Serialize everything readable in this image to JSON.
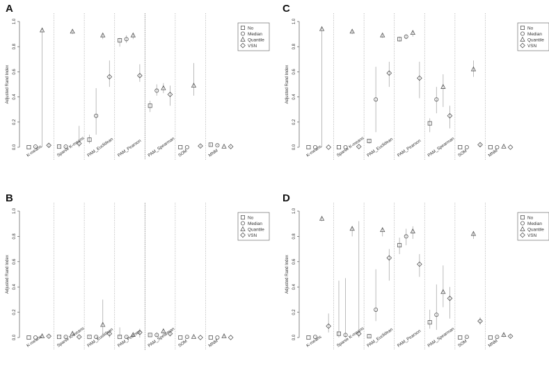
{
  "legend": [
    "No",
    "Median",
    "Quantile",
    "VSN"
  ],
  "marker_symbols": [
    "square",
    "circle",
    "triangle",
    "diamond"
  ],
  "colors": {
    "axis": "#555555",
    "marker": "#555555",
    "errorbar": "#aaaaaa",
    "separator": "#999999",
    "text": "#333333"
  },
  "chart_data": [
    {
      "type": "scatter",
      "panel_label": "A",
      "ylabel": "Adjusted Rand Index",
      "ylim": [
        0,
        1
      ],
      "yticks": [
        "0.0",
        "0.2",
        "0.4",
        "0.6",
        "0.8",
        "1.0"
      ],
      "categories": [
        "K-means",
        "Sparse K-means",
        "PAM_Euclidean",
        "PAM_Pearson",
        "PAM_Spearman",
        "SOM",
        "MNM"
      ],
      "separator_style": [
        "dotted",
        "dotted",
        "dotted",
        "dashed",
        "dotted",
        "dotted"
      ],
      "series": [
        {
          "name": "No",
          "values": [
            0.0,
            0.005,
            0.06,
            0.85,
            0.33,
            0.0,
            0.02
          ],
          "lower": [
            0.0,
            0.0,
            0.03,
            0.8,
            0.28,
            0.0,
            0.01
          ],
          "upper": [
            0.0,
            0.01,
            0.1,
            0.87,
            0.37,
            0.0,
            0.03
          ]
        },
        {
          "name": "Median",
          "values": [
            0.005,
            0.005,
            0.25,
            0.86,
            0.45,
            0.0,
            0.015
          ],
          "lower": [
            0.0,
            0.0,
            0.1,
            0.83,
            0.41,
            0.0,
            0.01
          ],
          "upper": [
            0.01,
            0.01,
            0.47,
            0.89,
            0.5,
            0.0,
            0.02
          ]
        },
        {
          "name": "Quantile",
          "values": [
            0.93,
            0.92,
            0.89,
            0.89,
            0.47,
            0.49,
            0.005
          ],
          "lower": [
            0.0,
            0.9,
            0.86,
            0.86,
            0.43,
            0.41,
            0.0
          ],
          "upper": [
            0.95,
            0.93,
            0.9,
            0.9,
            0.51,
            0.67,
            0.01
          ]
        },
        {
          "name": "VSN",
          "values": [
            0.015,
            0.03,
            0.56,
            0.57,
            0.42,
            0.01,
            0.005
          ],
          "lower": [
            0.0,
            0.0,
            0.48,
            0.52,
            0.33,
            0.0,
            0.0
          ],
          "upper": [
            0.03,
            0.17,
            0.69,
            0.66,
            0.49,
            0.02,
            0.01
          ]
        }
      ]
    },
    {
      "type": "scatter",
      "panel_label": "B",
      "ylabel": "Adjusted Rand Index",
      "ylim": [
        0,
        1
      ],
      "yticks": [
        "0.0",
        "0.2",
        "0.4",
        "0.6",
        "0.8",
        "1.0"
      ],
      "categories": [
        "K-means",
        "Sparse K-means",
        "PAM_Euclidean",
        "PAM_Pearson",
        "PAM_Spearman",
        "SOM",
        "MNM"
      ],
      "separator_style": [
        "dotted",
        "dotted",
        "dotted",
        "dashed",
        "dotted",
        "dotted"
      ],
      "series": [
        {
          "name": "No",
          "values": [
            0.0,
            0.005,
            0.005,
            0.005,
            0.02,
            0.0,
            0.0
          ],
          "lower": [
            0.0,
            0.0,
            0.0,
            0.0,
            0.01,
            0.0,
            0.0
          ],
          "upper": [
            0.0,
            0.01,
            0.01,
            0.08,
            0.03,
            0.0,
            0.0
          ]
        },
        {
          "name": "Median",
          "values": [
            0.0,
            0.005,
            0.005,
            0.005,
            0.02,
            0.005,
            0.0
          ],
          "lower": [
            0.0,
            0.0,
            0.0,
            0.0,
            0.01,
            0.0,
            0.0
          ],
          "upper": [
            0.0,
            0.01,
            0.01,
            0.01,
            0.04,
            0.01,
            0.0
          ]
        },
        {
          "name": "Quantile",
          "values": [
            0.01,
            0.03,
            0.1,
            0.02,
            0.05,
            0.005,
            0.01
          ],
          "lower": [
            0.0,
            0.0,
            0.0,
            0.0,
            0.02,
            0.0,
            0.0
          ],
          "upper": [
            0.02,
            0.04,
            0.3,
            0.03,
            0.07,
            0.01,
            0.02
          ]
        },
        {
          "name": "VSN",
          "values": [
            0.01,
            0.005,
            0.03,
            0.04,
            0.03,
            0.0,
            0.0
          ],
          "lower": [
            0.0,
            0.0,
            0.0,
            0.0,
            0.02,
            0.0,
            0.0
          ],
          "upper": [
            0.02,
            0.01,
            0.05,
            0.07,
            0.05,
            0.0,
            0.0
          ]
        }
      ]
    },
    {
      "type": "scatter",
      "panel_label": "C",
      "ylabel": "Adjusted Rand Index",
      "ylim": [
        0,
        1
      ],
      "yticks": [
        "0.0",
        "0.2",
        "0.4",
        "0.6",
        "0.8",
        "1.0"
      ],
      "categories": [
        "K-means",
        "Sparse K-means",
        "PAM_Euclidean",
        "PAM_Pearson",
        "PAM_Spearman",
        "SOM",
        "MNM"
      ],
      "separator_style": [
        "dotted",
        "dotted",
        "dotted",
        "dotted",
        "dotted",
        "dotted"
      ],
      "series": [
        {
          "name": "No",
          "values": [
            0.0,
            0.0,
            0.05,
            0.86,
            0.19,
            0.0,
            0.0
          ],
          "lower": [
            0.0,
            0.0,
            0.03,
            0.84,
            0.12,
            0.0,
            0.0
          ],
          "upper": [
            0.0,
            0.0,
            0.06,
            0.88,
            0.23,
            0.0,
            0.0
          ]
        },
        {
          "name": "Median",
          "values": [
            0.0,
            0.0,
            0.38,
            0.88,
            0.38,
            0.0,
            0.0
          ],
          "lower": [
            0.0,
            0.0,
            0.12,
            0.86,
            0.27,
            0.0,
            0.0
          ],
          "upper": [
            0.0,
            0.0,
            0.64,
            0.9,
            0.48,
            0.0,
            0.0
          ]
        },
        {
          "name": "Quantile",
          "values": [
            0.94,
            0.92,
            0.89,
            0.91,
            0.48,
            0.62,
            0.005
          ],
          "lower": [
            0.0,
            0.9,
            0.87,
            0.88,
            0.32,
            0.56,
            0.0
          ],
          "upper": [
            0.96,
            0.93,
            0.9,
            0.93,
            0.58,
            0.69,
            0.01
          ]
        },
        {
          "name": "VSN",
          "values": [
            0.0,
            0.005,
            0.59,
            0.55,
            0.25,
            0.02,
            0.0
          ],
          "lower": [
            0.0,
            0.0,
            0.48,
            0.39,
            0.15,
            0.0,
            0.0
          ],
          "upper": [
            0.0,
            0.01,
            0.68,
            0.68,
            0.33,
            0.03,
            0.0
          ]
        }
      ]
    },
    {
      "type": "scatter",
      "panel_label": "D",
      "ylabel": "Adjusted Rand Index",
      "ylim": [
        0,
        1
      ],
      "yticks": [
        "0.0",
        "0.2",
        "0.4",
        "0.6",
        "0.8",
        "1.0"
      ],
      "categories": [
        "K-means",
        "Sparse K-means",
        "PAM_Euclidean",
        "PAM_Pearson",
        "PAM_Spearman",
        "SOM",
        "MNM"
      ],
      "separator_style": [
        "dotted",
        "dotted",
        "dotted",
        "dotted",
        "dotted",
        "dotted"
      ],
      "series": [
        {
          "name": "No",
          "values": [
            0.0,
            0.03,
            0.01,
            0.73,
            0.12,
            0.0,
            0.0
          ],
          "lower": [
            0.0,
            0.0,
            0.0,
            0.66,
            0.07,
            0.0,
            0.0
          ],
          "upper": [
            0.0,
            0.45,
            0.02,
            0.79,
            0.22,
            0.0,
            0.0
          ]
        },
        {
          "name": "Median",
          "values": [
            0.005,
            0.02,
            0.22,
            0.8,
            0.18,
            0.005,
            0.005
          ],
          "lower": [
            0.0,
            0.0,
            0.13,
            0.73,
            0.06,
            0.0,
            0.0
          ],
          "upper": [
            0.01,
            0.47,
            0.54,
            0.86,
            0.42,
            0.01,
            0.01
          ]
        },
        {
          "name": "Quantile",
          "values": [
            0.94,
            0.86,
            0.85,
            0.84,
            0.36,
            0.82,
            0.02
          ],
          "lower": [
            0.92,
            0.8,
            0.8,
            0.78,
            0.24,
            0.78,
            0.0
          ],
          "upper": [
            0.95,
            0.88,
            0.87,
            0.88,
            0.57,
            0.84,
            0.04
          ]
        },
        {
          "name": "VSN",
          "values": [
            0.09,
            0.03,
            0.63,
            0.58,
            0.31,
            0.13,
            0.01
          ],
          "lower": [
            0.04,
            0.0,
            0.45,
            0.48,
            0.15,
            0.1,
            0.0
          ],
          "upper": [
            0.19,
            0.92,
            0.7,
            0.66,
            0.4,
            0.16,
            0.02
          ]
        }
      ]
    }
  ]
}
